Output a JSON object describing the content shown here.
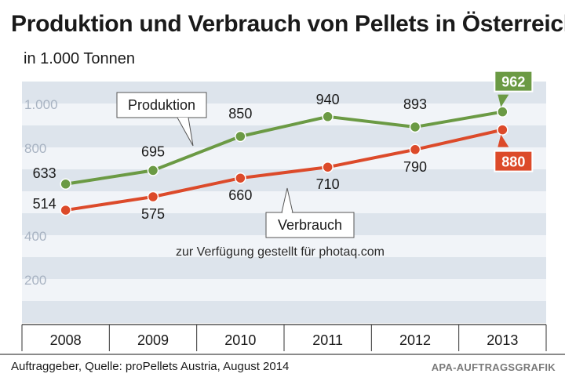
{
  "chart_data": {
    "type": "line",
    "title": "Produktion und Verbrauch von Pellets in Österreich",
    "unit_label": "in 1.000 Tonnen",
    "categories": [
      "2008",
      "2009",
      "2010",
      "2011",
      "2012",
      "2013"
    ],
    "y_ticks": [
      200,
      400,
      800,
      1000
    ],
    "y_tick_labels": [
      "200",
      "400",
      "800",
      "1.000"
    ],
    "ylim": [
      0,
      1100
    ],
    "grid": "horizontal bands",
    "series": [
      {
        "name": "Produktion",
        "color": "#6b9a44",
        "values": [
          633,
          695,
          850,
          940,
          893,
          962
        ]
      },
      {
        "name": "Verbrauch",
        "color": "#dc4a2a",
        "values": [
          514,
          575,
          660,
          710,
          790,
          880
        ]
      }
    ]
  },
  "watermark": "zur Verfügung gestellt für photaq.com",
  "footer": {
    "source": "Auftraggeber, Quelle: proPellets Austria, August 2014",
    "credit": "APA-AUFTRAGSGRAFIK"
  }
}
